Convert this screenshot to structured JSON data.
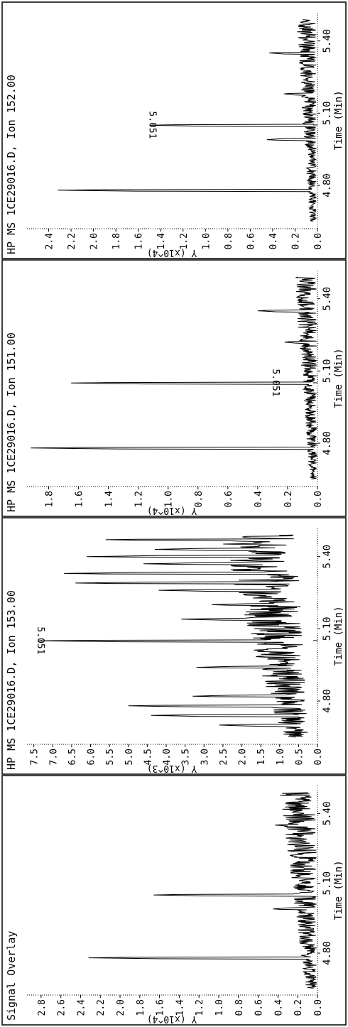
{
  "chart_data": [
    {
      "type": "line",
      "title": "HP MS 1CE29016.D, Ion 152.00",
      "xlabel": "Time (Min)",
      "ylabel": "Y (x10^4)",
      "xlim": [
        4.62,
        5.52
      ],
      "ylim": [
        0,
        2.6
      ],
      "x_ticks": [
        "4.80",
        "5.10",
        "5.40"
      ],
      "y_ticks": [
        "0.0",
        "0.2",
        "0.4",
        "0.6",
        "0.8",
        "1.0",
        "1.2",
        "1.4",
        "1.6",
        "1.8",
        "2.0",
        "2.2",
        "2.4"
      ],
      "peaks": [
        {
          "x": 4.78,
          "y": 2.32
        },
        {
          "x": 5.05,
          "y": 1.5
        },
        {
          "x": 4.99,
          "y": 0.45
        },
        {
          "x": 5.35,
          "y": 0.43
        },
        {
          "x": 5.18,
          "y": 0.3
        }
      ],
      "baseline": {
        "start": 0.04,
        "end": 0.1,
        "noise": 0.12
      },
      "annotation": {
        "x": 5.051,
        "y": 1.5,
        "text": "5.051"
      }
    },
    {
      "type": "line",
      "title": "HP MS 1CE29016.D, Ion 151.00",
      "xlabel": "Time (Min)",
      "ylabel": "Y (x10^4)",
      "xlim": [
        4.62,
        5.52
      ],
      "ylim": [
        0,
        1.95
      ],
      "x_ticks": [
        "4.80",
        "5.10",
        "5.40"
      ],
      "y_ticks": [
        "0.0",
        "0.2",
        "0.4",
        "0.6",
        "0.8",
        "1.0",
        "1.2",
        "1.4",
        "1.6",
        "1.8"
      ],
      "peaks": [
        {
          "x": 4.78,
          "y": 1.92
        },
        {
          "x": 5.05,
          "y": 1.65
        },
        {
          "x": 5.35,
          "y": 0.4
        },
        {
          "x": 5.22,
          "y": 0.22
        }
      ],
      "baseline": {
        "start": 0.03,
        "end": 0.08,
        "noise": 0.1
      },
      "annotation": {
        "x": 5.051,
        "y": 0.3,
        "text": "5.051"
      }
    },
    {
      "type": "line",
      "title": "HP MS 1CE29016.D, Ion 153.00",
      "xlabel": "Time (Min)",
      "ylabel": "Y (x10^3)",
      "xlim": [
        4.62,
        5.52
      ],
      "ylim": [
        0,
        7.7
      ],
      "x_ticks": [
        "4.80",
        "5.10",
        "5.40"
      ],
      "y_ticks": [
        "0.0",
        "0.5",
        "1.0",
        "1.5",
        "2.0",
        "2.5",
        "3.0",
        "3.5",
        "4.0",
        "4.5",
        "5.0",
        "5.5",
        "6.0",
        "6.5",
        "7.0",
        "7.5"
      ],
      "peaks": [
        {
          "x": 5.05,
          "y": 7.4
        },
        {
          "x": 5.33,
          "y": 6.7
        },
        {
          "x": 5.29,
          "y": 6.4
        },
        {
          "x": 5.4,
          "y": 6.1
        },
        {
          "x": 5.47,
          "y": 5.6
        },
        {
          "x": 4.78,
          "y": 5.0
        },
        {
          "x": 4.74,
          "y": 4.4
        },
        {
          "x": 5.37,
          "y": 4.6
        },
        {
          "x": 5.26,
          "y": 4.2
        },
        {
          "x": 5.43,
          "y": 4.3
        },
        {
          "x": 4.82,
          "y": 3.3
        },
        {
          "x": 4.7,
          "y": 2.6
        },
        {
          "x": 4.94,
          "y": 3.2
        },
        {
          "x": 5.14,
          "y": 3.6
        },
        {
          "x": 5.2,
          "y": 2.8
        }
      ],
      "baseline": {
        "start": 0.6,
        "end": 1.6,
        "noise": 1.4
      },
      "annotation": {
        "x": 5.051,
        "y": 7.4,
        "text": "5.051"
      }
    },
    {
      "type": "line",
      "title": "Signal Overlay",
      "xlabel": "Time (Min)",
      "ylabel": "Y (x10^4)",
      "xlim": [
        4.62,
        5.52
      ],
      "ylim": [
        0,
        2.95
      ],
      "x_ticks": [
        "4.80",
        "5.10",
        "5.40"
      ],
      "y_ticks": [
        "0.0",
        "0.2",
        "0.4",
        "0.6",
        "0.8",
        "1.0",
        "1.2",
        "1.4",
        "1.6",
        "1.8",
        "2.0",
        "2.2",
        "2.4",
        "2.6",
        "2.8"
      ],
      "peaks": [
        {
          "x": 4.78,
          "y": 2.32
        },
        {
          "x": 5.05,
          "y": 1.66
        },
        {
          "x": 4.99,
          "y": 0.45
        },
        {
          "x": 5.35,
          "y": 0.43
        },
        {
          "x": 5.22,
          "y": 0.28
        }
      ],
      "baseline": {
        "start": 0.06,
        "end": 0.2,
        "noise": 0.25
      },
      "annotation": null
    }
  ]
}
